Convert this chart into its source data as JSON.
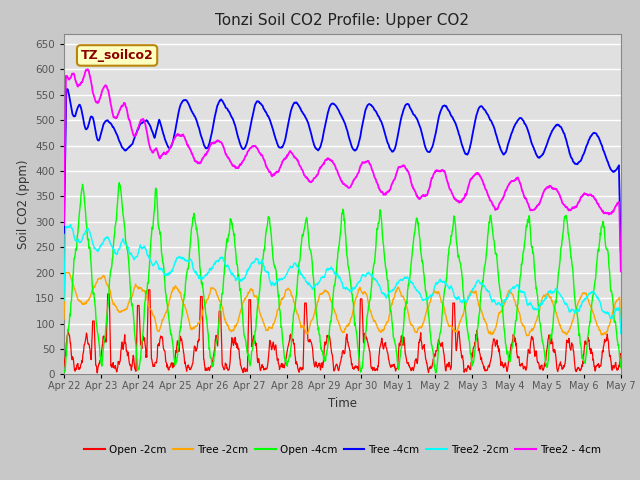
{
  "title": "Tonzi Soil CO2 Profile: Upper CO2",
  "xlabel": "Time",
  "ylabel": "Soil CO2 (ppm)",
  "ylim": [
    0,
    670
  ],
  "yticks": [
    0,
    50,
    100,
    150,
    200,
    250,
    300,
    350,
    400,
    450,
    500,
    550,
    600,
    650
  ],
  "legend_label": "TZ_soilco2",
  "legend_text_color": "#8B0000",
  "legend_box_facecolor": "#FFFFC0",
  "legend_box_edgecolor": "#B8860B",
  "series": {
    "Open_2cm": {
      "color": "#FF0000",
      "label": "Open -2cm"
    },
    "Tree_2cm": {
      "color": "#FFA500",
      "label": "Tree -2cm"
    },
    "Open_4cm": {
      "color": "#00FF00",
      "label": "Open -4cm"
    },
    "Tree_4cm": {
      "color": "#0000FF",
      "label": "Tree -4cm"
    },
    "Tree2_2cm": {
      "color": "#00FFFF",
      "label": "Tree2 -2cm"
    },
    "Tree2_4cm": {
      "color": "#FF00FF",
      "label": "Tree2 - 4cm"
    }
  },
  "fig_bg_color": "#C8C8C8",
  "axes_bg_color": "#E0E0E0",
  "grid_color": "#FFFFFF",
  "tick_label_color": "#555555",
  "n_days": 15,
  "tick_labels": [
    "Apr 22",
    "Apr 23",
    "Apr 24",
    "Apr 25",
    "Apr 26",
    "Apr 27",
    "Apr 28",
    "Apr 29",
    "Apr 30",
    "May 1",
    "May 2",
    "May 3",
    "May 4",
    "May 5",
    "May 6",
    "May 7"
  ]
}
